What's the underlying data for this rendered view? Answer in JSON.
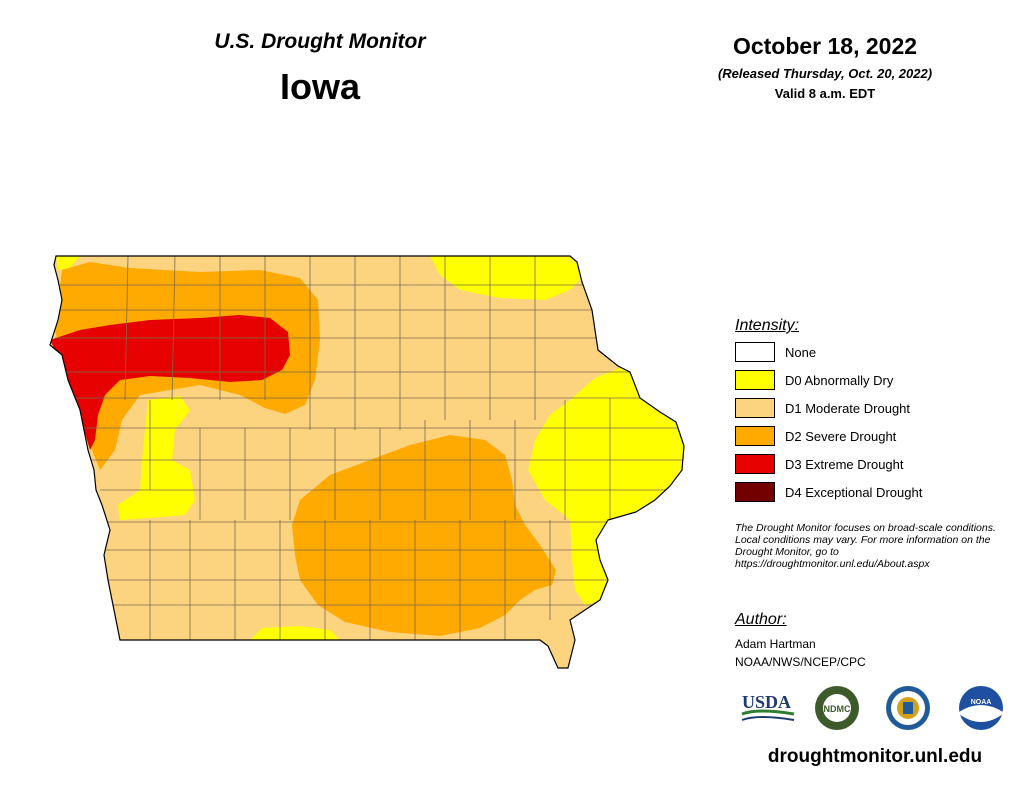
{
  "header": {
    "subtitle": "U.S. Drought Monitor",
    "state": "Iowa",
    "date": "October 18, 2022",
    "released": "(Released Thursday, Oct. 20, 2022)",
    "valid": "Valid 8 a.m. EDT"
  },
  "legend": {
    "title": "Intensity:",
    "items": [
      {
        "label": "None",
        "color": "#ffffff"
      },
      {
        "label": "D0 Abnormally Dry",
        "color": "#ffff00"
      },
      {
        "label": "D1 Moderate Drought",
        "color": "#fcd37f"
      },
      {
        "label": "D2 Severe Drought",
        "color": "#ffaa00"
      },
      {
        "label": "D3 Extreme Drought",
        "color": "#e60000"
      },
      {
        "label": "D4 Exceptional Drought",
        "color": "#730000"
      }
    ]
  },
  "note": "The Drought Monitor focuses on broad-scale conditions. Local conditions may vary. For more information on the Drought Monitor, go to https://droughtmonitor.unl.edu/About.aspx",
  "author": {
    "title": "Author:",
    "name": "Adam Hartman",
    "org": "NOAA/NWS/NCEP/CPC"
  },
  "logos": [
    {
      "name": "usda-logo",
      "text": "USDA"
    },
    {
      "name": "ndmc-logo",
      "text": "NDMC"
    },
    {
      "name": "doc-seal-logo",
      "text": ""
    },
    {
      "name": "noaa-logo",
      "text": "NOAA"
    }
  ],
  "url": "droughtmonitor.unl.edu"
}
